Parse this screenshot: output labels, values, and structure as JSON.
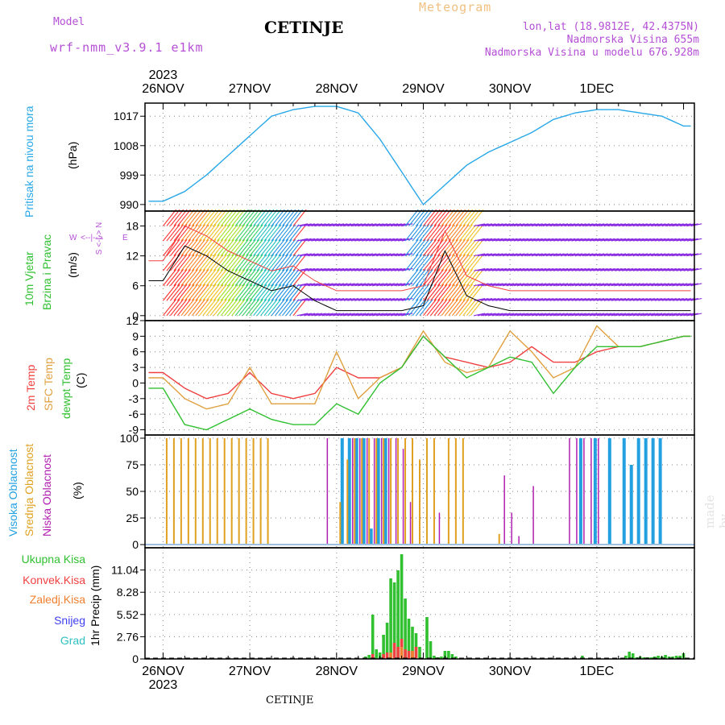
{
  "header": {
    "model_label": "Model",
    "model_name": "wrf-nmm_v3.9.1 e1km",
    "station": "CETINJE",
    "meteogram": "Meteogram",
    "lonlat": "lon,lat (18.9812E, 42.4375N)",
    "altitude": "Nadmorska Visina 655m",
    "model_altitude": "Nadmorska Visina u modelu 676.928m"
  },
  "time_axis": {
    "year_top": "2023",
    "year_bottom": "2023",
    "days": [
      "26NOV",
      "27NOV",
      "28NOV",
      "29NOV",
      "30NOV",
      "1DEC"
    ]
  },
  "footer_station": "CETINJE",
  "watermark": "made by Angel",
  "colors": {
    "pressure": "#29a8e8",
    "temp2m": "#f04040",
    "sfc": "#e0a040",
    "dewpt": "#30c030",
    "high_cloud": "#22a0e0",
    "mid_cloud": "#e0a020",
    "low_cloud": "#b020b0",
    "total_precip": "#30c030",
    "convective": "#f04040",
    "frozen": "#f08030",
    "snow": "#4040f0",
    "graupel": "#30c0c0",
    "wind_violet": "#8a2be2"
  },
  "panels": {
    "pressure": {
      "title": "Pritisak na nivou mora",
      "unit": "(hPa)",
      "ticks": [
        "1017",
        "1008",
        "999",
        "990"
      ]
    },
    "wind": {
      "title1": "10m Vjetar",
      "title2": "Brzina i Pravac",
      "unit": "(m/s)",
      "ticks": [
        "18",
        "12",
        "6",
        "0"
      ],
      "compass": [
        "W",
        "<--|-->",
        "E",
        "N",
        "^",
        "|",
        "v",
        "S"
      ]
    },
    "temp": {
      "title1": "2m Temp",
      "title2": "SFC Temp",
      "title3": "dewpt Temp",
      "unit": "(C)",
      "ticks": [
        "12",
        "9",
        "6",
        "3",
        "0",
        "-3",
        "-6",
        "-9"
      ]
    },
    "cloud": {
      "title1": "Visoka Oblacnost",
      "title2": "Srednja Oblacnost",
      "title3": "Niska Oblacnost",
      "unit": "(%)",
      "ticks": [
        "100",
        "75",
        "50",
        "25",
        "0"
      ]
    },
    "precip": {
      "legend": [
        "Ukupna Kisa",
        "Konvek.Kisa",
        "Zaledj.Kisa",
        "Snijeg",
        "Grad"
      ],
      "unit": "1hr Precip (mm)",
      "ticks": [
        "11.04",
        "8.28",
        "5.52",
        "2.76",
        "0"
      ]
    }
  },
  "chart_data": [
    {
      "type": "line",
      "name": "pressure",
      "x_hours": [
        0,
        6,
        12,
        18,
        24,
        30,
        36,
        42,
        48,
        54,
        60,
        66,
        72,
        78,
        84,
        90,
        96,
        102,
        108,
        114,
        120,
        126,
        132,
        138,
        144
      ],
      "values": [
        991,
        994,
        999,
        1005,
        1011,
        1017,
        1019,
        1020,
        1020,
        1018,
        1010,
        1000,
        990,
        996,
        1002,
        1006,
        1009,
        1012,
        1016,
        1018,
        1019,
        1019,
        1018,
        1017,
        1014
      ],
      "ylim": [
        988,
        1021
      ]
    },
    {
      "type": "line",
      "name": "wind_speed",
      "x_hours": [
        0,
        6,
        12,
        18,
        24,
        30,
        36,
        42,
        48,
        54,
        60,
        66,
        72,
        78,
        84,
        90,
        96,
        102,
        108,
        114,
        120,
        126,
        132,
        138,
        144
      ],
      "values": [
        7,
        14,
        12,
        9,
        7,
        5,
        6,
        3,
        1,
        1,
        1,
        1,
        2,
        13,
        4,
        2,
        1,
        1,
        1,
        1,
        1,
        1,
        1,
        1,
        1
      ],
      "ylim": [
        -1,
        21
      ]
    },
    {
      "type": "line",
      "name": "temperatures",
      "x_hours": [
        0,
        6,
        12,
        18,
        24,
        30,
        36,
        42,
        48,
        54,
        60,
        66,
        72,
        78,
        84,
        90,
        96,
        102,
        108,
        114,
        120,
        126,
        132,
        138,
        144
      ],
      "series": [
        {
          "name": "2m Temp",
          "values": [
            2,
            -1,
            -3,
            -2,
            2,
            -2,
            -3,
            -2,
            3,
            1,
            1,
            3,
            9,
            5,
            4,
            3,
            4,
            7,
            4,
            4,
            6,
            7,
            7,
            8,
            9
          ]
        },
        {
          "name": "SFC Temp",
          "values": [
            1,
            -3,
            -5,
            -4,
            3,
            -4,
            -4,
            -4,
            6,
            -3,
            1,
            3,
            10,
            4,
            2,
            3,
            10,
            6,
            1,
            3,
            11,
            7,
            7,
            8,
            9
          ]
        },
        {
          "name": "dewpt Temp",
          "values": [
            -1,
            -8,
            -9,
            -7,
            -5,
            -7,
            -8,
            -8,
            -4,
            -6,
            0,
            3,
            9,
            5,
            1,
            3,
            5,
            4,
            -2,
            3,
            7,
            7,
            7,
            8,
            9
          ]
        }
      ],
      "ylim": [
        -10,
        12
      ]
    },
    {
      "type": "bar",
      "name": "cloud_cover",
      "series": [
        {
          "name": "Visoka Oblacnost",
          "x_hours": [
            50,
            52,
            54,
            56,
            58,
            60,
            62,
            116,
            120,
            124,
            128,
            130,
            132,
            134,
            136,
            138
          ],
          "values": [
            100,
            100,
            100,
            100,
            15,
            100,
            100,
            100,
            100,
            100,
            100,
            75,
            100,
            100,
            100,
            100
          ]
        },
        {
          "name": "Srednja Oblacnost",
          "x_hours": [
            1,
            3,
            5,
            7,
            9,
            11,
            13,
            15,
            17,
            19,
            21,
            23,
            25,
            27,
            29,
            49,
            51,
            53,
            55,
            57,
            59,
            61,
            63,
            65,
            67,
            69,
            71,
            73,
            75,
            79,
            81,
            83,
            93
          ],
          "values": [
            100,
            100,
            100,
            100,
            100,
            100,
            100,
            100,
            100,
            100,
            100,
            100,
            100,
            100,
            100,
            40,
            80,
            100,
            100,
            100,
            100,
            100,
            100,
            100,
            100,
            100,
            80,
            100,
            100,
            100,
            100,
            100,
            10
          ]
        },
        {
          "name": "Niska Oblacnost",
          "x_hours": [
            45,
            52,
            54,
            56,
            58,
            60,
            62,
            64,
            66,
            68,
            76,
            94,
            96,
            98,
            102,
            112,
            114,
            116,
            118,
            120
          ],
          "values": [
            100,
            100,
            100,
            100,
            100,
            100,
            100,
            100,
            90,
            40,
            30,
            65,
            30,
            8,
            55,
            100,
            100,
            100,
            100,
            100
          ]
        }
      ],
      "ylim": [
        0,
        100
      ]
    },
    {
      "type": "bar",
      "name": "precipitation",
      "series": [
        {
          "name": "Ukupna Kisa",
          "x_hours": [
            56,
            57,
            58,
            59,
            60,
            61,
            62,
            63,
            64,
            65,
            66,
            67,
            68,
            69,
            70,
            71,
            73,
            74,
            75,
            76,
            77,
            78,
            79,
            80,
            81,
            116,
            128,
            129,
            130,
            131,
            132,
            133,
            134,
            135,
            136,
            137,
            138,
            139,
            140,
            141,
            142,
            143,
            144
          ],
          "values": [
            0.3,
            0.5,
            5.5,
            1.2,
            0.8,
            3.0,
            4.5,
            10.0,
            9.5,
            11.0,
            13.0,
            7.5,
            5.0,
            4.0,
            3.2,
            1.5,
            5.2,
            2.2,
            0.4,
            0.2,
            0.3,
            1.0,
            1.0,
            0.6,
            0.3,
            0.4,
            0.4,
            0.9,
            0.7,
            0.2,
            0.3,
            0.2,
            0.2,
            0.2,
            0.3,
            0.4,
            0.3,
            0.5,
            0.3,
            0.3,
            0.4,
            0.4,
            0.7
          ]
        },
        {
          "name": "Konvek.Kisa",
          "x_hours": [
            58,
            61,
            62,
            64,
            65,
            66,
            67,
            68,
            69,
            70
          ],
          "values": [
            0.6,
            0.6,
            0.8,
            2.0,
            1.5,
            2.5,
            1.2,
            1.0,
            1.0,
            1.5
          ]
        },
        {
          "name": "Zaledj.Kisa",
          "x_hours": [
            63,
            66,
            69
          ],
          "values": [
            0.8,
            1.5,
            1.0
          ]
        },
        {
          "name": "Snijeg",
          "x_hours": [],
          "values": []
        },
        {
          "name": "Grad",
          "x_hours": [],
          "values": []
        }
      ],
      "ylim": [
        0,
        13.8
      ]
    }
  ]
}
